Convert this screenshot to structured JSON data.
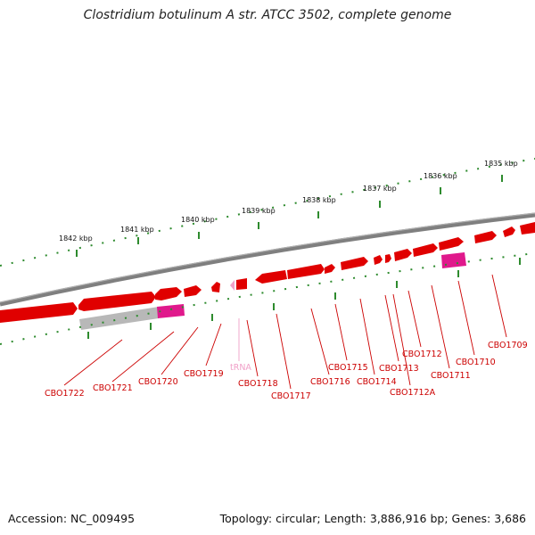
{
  "title": "Clostridium botulinum A str. ATCC 3502, complete genome",
  "footer": {
    "accession": "Accession: NC_009495",
    "summary": "Topology: circular; Length: 3,886,916 bp; Genes: 3,686"
  },
  "scale_labels": [
    "1842 kbp",
    "1841 kbp",
    "1840 kbp",
    "1839 kbp",
    "1838 kbp",
    "1837 kbp",
    "1836 kbp",
    "1835 kbp"
  ],
  "gene_labels": [
    "CBO1722",
    "CBO1721",
    "CBO1720",
    "CBO1719",
    "tRNA",
    "CBO1718",
    "CBO1717",
    "CBO1716",
    "CBO1715",
    "CBO1714",
    "CBO1713",
    "CBO1712A",
    "CBO1712",
    "CBO1711",
    "CBO1710",
    "CBO1709"
  ],
  "colors": {
    "gene": "#e00000",
    "gene_highlight": "#ff3030",
    "rna": "#e0198c",
    "trna": "#f0a0c8",
    "backbone": "#7f7f7f",
    "ticks": "#2e8b2e",
    "label": "#cc0000"
  }
}
